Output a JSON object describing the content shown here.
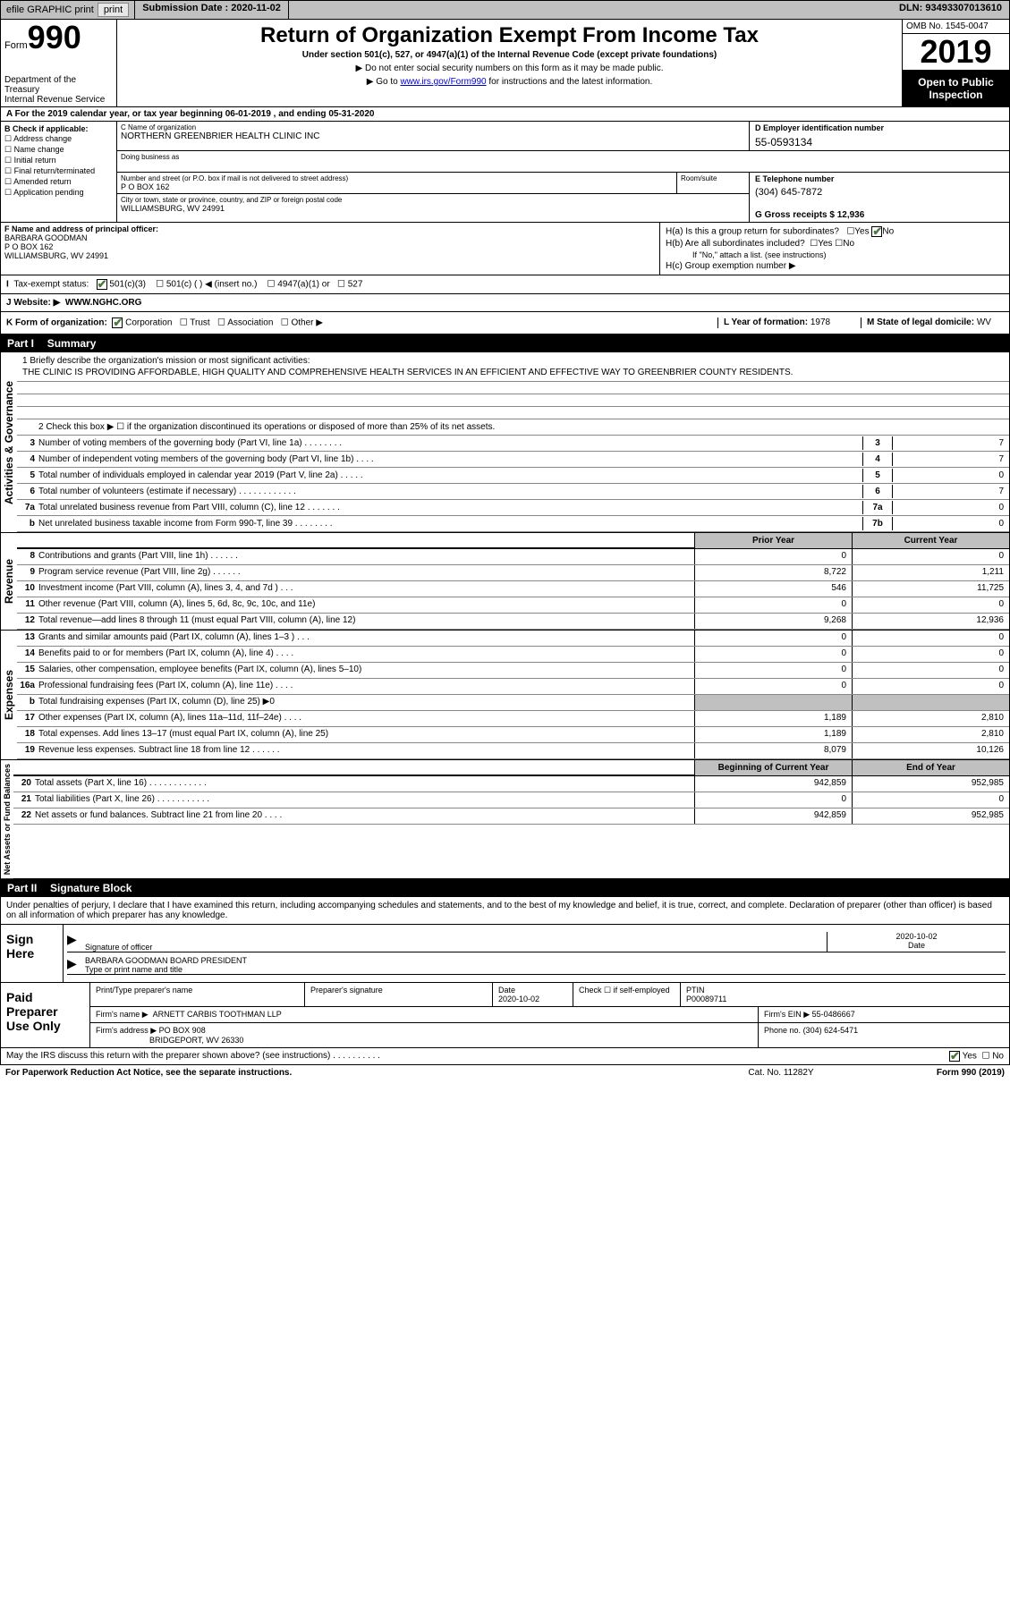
{
  "topbar": {
    "efile": "efile GRAPHIC print",
    "subdate_label": "Submission Date :",
    "subdate": "2020-11-02",
    "dln": "DLN: 93493307013610"
  },
  "header": {
    "form_word": "Form",
    "form_no": "990",
    "dept": "Department of the Treasury\nInternal Revenue Service",
    "title": "Return of Organization Exempt From Income Tax",
    "subtitle": "Under section 501(c), 527, or 4947(a)(1) of the Internal Revenue Code (except private foundations)",
    "instr1": "▶ Do not enter social security numbers on this form as it may be made public.",
    "instr2_prefix": "▶ Go to ",
    "instr2_link": "www.irs.gov/Form990",
    "instr2_suffix": " for instructions and the latest information.",
    "omb": "OMB No. 1545-0047",
    "year": "2019",
    "public": "Open to Public Inspection"
  },
  "rowA": "A For the 2019 calendar year, or tax year beginning 06-01-2019    , and ending 05-31-2020",
  "colB": {
    "title": "B Check if applicable:",
    "items": [
      "Address change",
      "Name change",
      "Initial return",
      "Final return/terminated",
      "Amended return",
      "Application pending"
    ]
  },
  "colC": {
    "name_label": "C Name of organization",
    "name": "NORTHERN GREENBRIER HEALTH CLINIC INC",
    "dba_label": "Doing business as",
    "street_label": "Number and street (or P.O. box if mail is not delivered to street address)",
    "street": "P O BOX 162",
    "suite_label": "Room/suite",
    "city_label": "City or town, state or province, country, and ZIP or foreign postal code",
    "city": "WILLIAMSBURG, WV  24991"
  },
  "colD": {
    "ein_label": "D Employer identification number",
    "ein": "55-0593134",
    "phone_label": "E Telephone number",
    "phone": "(304) 645-7872",
    "gross_label": "G Gross receipts $",
    "gross": "12,936"
  },
  "sectionF": {
    "label": "F  Name and address of principal officer:",
    "name": "BARBARA GOODMAN",
    "addr1": "P O BOX 162",
    "addr2": "WILLIAMSBURG, WV  24991"
  },
  "sectionH": {
    "ha": "H(a)  Is this a group return for subordinates?",
    "ha_yes": "Yes",
    "ha_no": "No",
    "hb": "H(b)  Are all subordinates included?",
    "hb_yes": "Yes",
    "hb_no": "No",
    "hb_note": "If \"No,\" attach a list. (see instructions)",
    "hc": "H(c)  Group exemption number ▶"
  },
  "taxexempt": {
    "label": "Tax-exempt status:",
    "opt1": "501(c)(3)",
    "opt2": "501(c) (   ) ◀ (insert no.)",
    "opt3": "4947(a)(1) or",
    "opt4": "527"
  },
  "website": {
    "label": "J   Website: ▶",
    "value": "WWW.NGHC.ORG"
  },
  "sectionK": {
    "label": "K Form of organization:",
    "opts": [
      "Corporation",
      "Trust",
      "Association",
      "Other ▶"
    ],
    "checked": 0
  },
  "sectionL": {
    "label": "L Year of formation:",
    "value": "1978"
  },
  "sectionM": {
    "label": "M State of legal domicile:",
    "value": "WV"
  },
  "partI": {
    "num": "Part I",
    "title": "Summary"
  },
  "governance": {
    "vlabel": "Activities & Governance",
    "q1_label": "1   Briefly describe the organization's mission or most significant activities:",
    "q1_text": "THE CLINIC IS PROVIDING AFFORDABLE, HIGH QUALITY AND COMPREHENSIVE HEALTH SERVICES IN AN EFFICIENT AND EFFECTIVE WAY TO GREENBRIER COUNTY RESIDENTS.",
    "q2": "2   Check this box ▶ ☐  if the organization discontinued its operations or disposed of more than 25% of its net assets.",
    "rows": [
      {
        "n": "3",
        "lbl": "Number of voting members of the governing body (Part VI, line 1a)   .    .    .    .    .    .    .    .",
        "box": "3",
        "val": "7"
      },
      {
        "n": "4",
        "lbl": "Number of independent voting members of the governing body (Part VI, line 1b)   .    .    .    .",
        "box": "4",
        "val": "7"
      },
      {
        "n": "5",
        "lbl": "Total number of individuals employed in calendar year 2019 (Part V, line 2a)   .    .    .    .    .",
        "box": "5",
        "val": "0"
      },
      {
        "n": "6",
        "lbl": "Total number of volunteers (estimate if necessary)     .    .    .    .    .    .    .    .    .    .    .    .",
        "box": "6",
        "val": "7"
      },
      {
        "n": "7a",
        "lbl": "Total unrelated business revenue from Part VIII, column (C), line 12   .    .    .    .    .    .    .",
        "box": "7a",
        "val": "0"
      },
      {
        "n": "b",
        "lbl": "Net unrelated business taxable income from Form 990-T, line 39   .    .    .    .    .    .    .    .",
        "box": "7b",
        "val": "0"
      }
    ]
  },
  "revenue": {
    "vlabel": "Revenue",
    "prior": "Prior Year",
    "current": "Current Year",
    "rows": [
      {
        "n": "8",
        "lbl": "Contributions and grants (Part VIII, line 1h)    .    .    .    .    .    .",
        "p": "0",
        "c": "0"
      },
      {
        "n": "9",
        "lbl": "Program service revenue (Part VIII, line 2g)    .    .    .    .    .    .",
        "p": "8,722",
        "c": "1,211"
      },
      {
        "n": "10",
        "lbl": "Investment income (Part VIII, column (A), lines 3, 4, and 7d )    .    .    .",
        "p": "546",
        "c": "11,725"
      },
      {
        "n": "11",
        "lbl": "Other revenue (Part VIII, column (A), lines 5, 6d, 8c, 9c, 10c, and 11e)",
        "p": "0",
        "c": "0"
      },
      {
        "n": "12",
        "lbl": "Total revenue—add lines 8 through 11 (must equal Part VIII, column (A), line 12)",
        "p": "9,268",
        "c": "12,936"
      }
    ]
  },
  "expenses": {
    "vlabel": "Expenses",
    "rows": [
      {
        "n": "13",
        "lbl": "Grants and similar amounts paid (Part IX, column (A), lines 1–3 )    .    .    .",
        "p": "0",
        "c": "0"
      },
      {
        "n": "14",
        "lbl": "Benefits paid to or for members (Part IX, column (A), line 4)    .    .    .    .",
        "p": "0",
        "c": "0"
      },
      {
        "n": "15",
        "lbl": "Salaries, other compensation, employee benefits (Part IX, column (A), lines 5–10)",
        "p": "0",
        "c": "0"
      },
      {
        "n": "16a",
        "lbl": "Professional fundraising fees (Part IX, column (A), line 11e)    .    .    .    .",
        "p": "0",
        "c": "0"
      },
      {
        "n": "b",
        "lbl": "Total fundraising expenses (Part IX, column (D), line 25) ▶0",
        "p": "",
        "c": "",
        "shaded": true
      },
      {
        "n": "17",
        "lbl": "Other expenses (Part IX, column (A), lines 11a–11d, 11f–24e)    .    .    .    .",
        "p": "1,189",
        "c": "2,810"
      },
      {
        "n": "18",
        "lbl": "Total expenses. Add lines 13–17 (must equal Part IX, column (A), line 25)",
        "p": "1,189",
        "c": "2,810"
      },
      {
        "n": "19",
        "lbl": "Revenue less expenses. Subtract line 18 from line 12   .    .    .    .    .    .",
        "p": "8,079",
        "c": "10,126"
      }
    ]
  },
  "netassets": {
    "vlabel": "Net Assets or Fund Balances",
    "begin": "Beginning of Current Year",
    "end": "End of Year",
    "rows": [
      {
        "n": "20",
        "lbl": "Total assets (Part X, line 16)    .    .    .    .    .    .    .    .    .    .    .    .",
        "p": "942,859",
        "c": "952,985"
      },
      {
        "n": "21",
        "lbl": "Total liabilities (Part X, line 26)    .    .    .    .    .    .    .    .    .    .    .",
        "p": "0",
        "c": "0"
      },
      {
        "n": "22",
        "lbl": "Net assets or fund balances. Subtract line 21 from line 20    .    .    .    .",
        "p": "942,859",
        "c": "952,985"
      }
    ]
  },
  "partII": {
    "num": "Part II",
    "title": "Signature Block"
  },
  "sig": {
    "intro": "Under penalties of perjury, I declare that I have examined this return, including accompanying schedules and statements, and to the best of my knowledge and belief, it is true, correct, and complete. Declaration of preparer (other than officer) is based on all information of which preparer has any knowledge.",
    "sign_here": "Sign Here",
    "officer_label": "Signature of officer",
    "date_label": "Date",
    "date": "2020-10-02",
    "name": "BARBARA GOODMAN  BOARD PRESIDENT",
    "name_label": "Type or print name and title"
  },
  "prep": {
    "label": "Paid Preparer Use Only",
    "name_label": "Print/Type preparer's name",
    "sig_label": "Preparer's signature",
    "date_label": "Date",
    "date": "2020-10-02",
    "self_label": "Check ☐ if self-employed",
    "ptin_label": "PTIN",
    "ptin": "P00089711",
    "firm_name_label": "Firm's name      ▶",
    "firm_name": "ARNETT CARBIS TOOTHMAN LLP",
    "firm_ein_label": "Firm's EIN ▶",
    "firm_ein": "55-0486667",
    "firm_addr_label": "Firm's address ▶",
    "firm_addr1": "PO BOX 908",
    "firm_addr2": "BRIDGEPORT, WV  26330",
    "phone_label": "Phone no.",
    "phone": "(304) 624-5471"
  },
  "footer": {
    "discuss": "May the IRS discuss this return with the preparer shown above? (see instructions)    .    .    .    .    .    .    .    .    .    .",
    "yes": "Yes",
    "no": "No",
    "paperwork": "For Paperwork Reduction Act Notice, see the separate instructions.",
    "catno": "Cat. No. 11282Y",
    "formno": "Form 990 (2019)"
  },
  "colors": {
    "gray": "#c0c0c0",
    "checkgreen": "#4a7a3a",
    "link": "#0000cc"
  }
}
